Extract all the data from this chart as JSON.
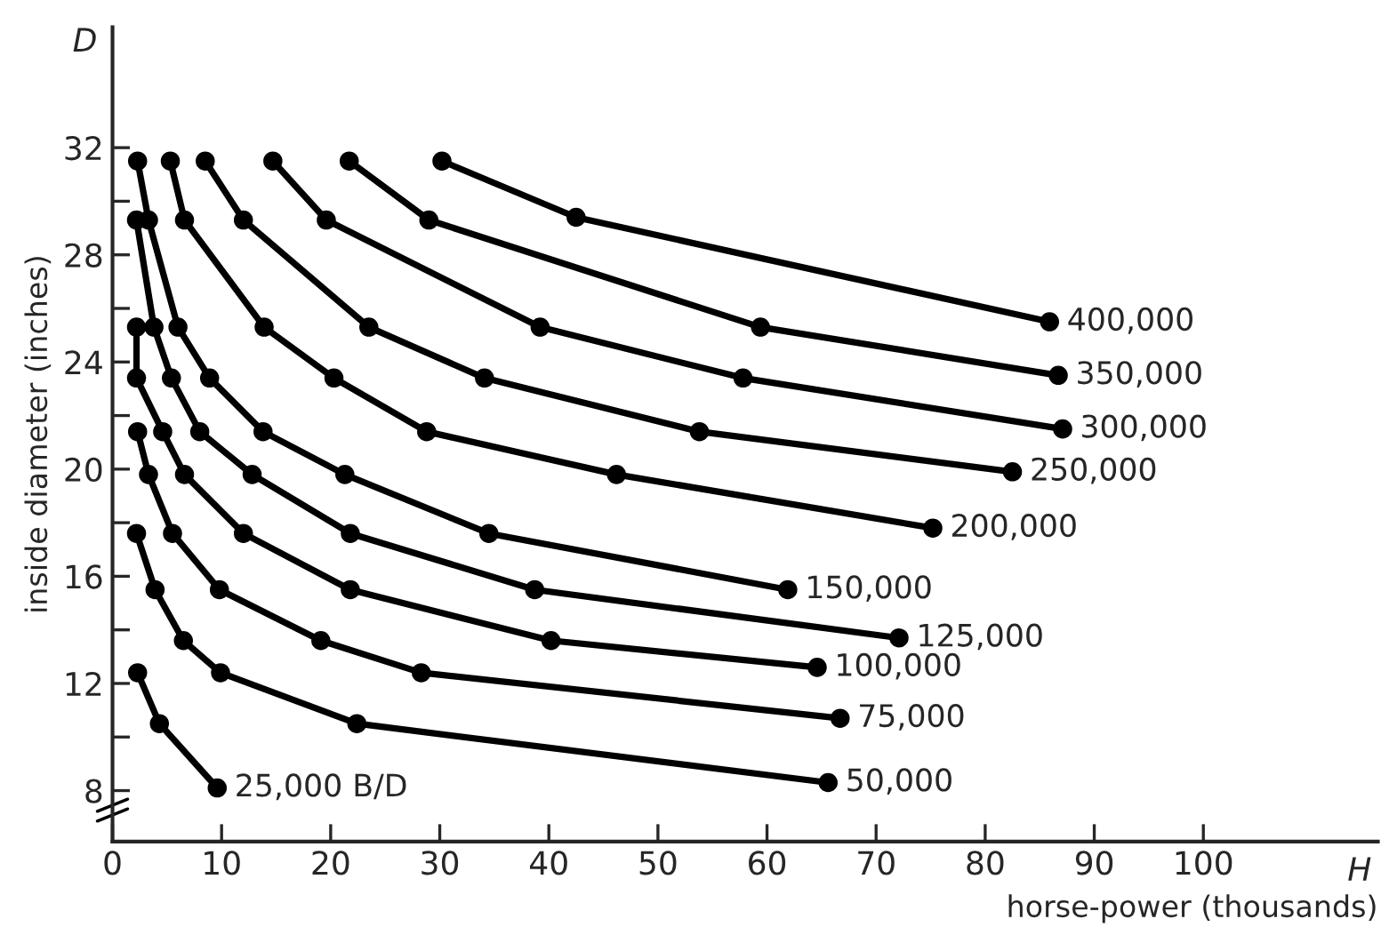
{
  "chart_data": {
    "type": "line",
    "xlabel": "horse-power (thousands)",
    "ylabel": "inside diameter (inches)",
    "annotations": [
      "D",
      "H"
    ],
    "xlim": [
      0,
      116
    ],
    "ylim": [
      6.1,
      36.5
    ],
    "xticks": [
      0,
      10,
      20,
      30,
      40,
      50,
      60,
      70,
      80,
      90,
      100
    ],
    "yticks": [
      8,
      {
        "value": 10,
        "label": null
      },
      12,
      {
        "value": 14,
        "label": null
      },
      16,
      {
        "value": 18,
        "label": null
      },
      20,
      {
        "value": 22,
        "label": null
      },
      24,
      {
        "value": 26,
        "label": null
      },
      28,
      {
        "value": 30,
        "label": null
      },
      32
    ],
    "grid": false,
    "legend": false,
    "marker": "circle",
    "line_style": "solid",
    "series": [
      {
        "name": "25,000 B/D",
        "color": "#000000",
        "x": [
          2.3,
          4.3,
          9.6
        ],
        "values": [
          12.4,
          10.5,
          8.1
        ]
      },
      {
        "name": "50,000",
        "color": "#000000",
        "x": [
          2.2,
          3.9,
          6.5,
          9.9,
          22.4,
          65.6
        ],
        "values": [
          17.6,
          15.5,
          13.6,
          12.4,
          10.5,
          8.3
        ]
      },
      {
        "name": "75,000",
        "color": "#000000",
        "x": [
          2.3,
          3.3,
          5.5,
          9.8,
          19.1,
          28.3,
          66.7
        ],
        "values": [
          21.4,
          19.8,
          17.6,
          15.5,
          13.6,
          12.4,
          10.7
        ]
      },
      {
        "name": "100,000",
        "color": "#000000",
        "x": [
          2.2,
          2.2,
          4.6,
          6.6,
          12.0,
          21.8,
          40.2,
          64.6
        ],
        "values": [
          25.3,
          23.4,
          21.4,
          19.8,
          17.6,
          15.5,
          13.6,
          12.6
        ]
      },
      {
        "name": "125,000",
        "color": "#000000",
        "x": [
          2.2,
          3.8,
          5.4,
          8.0,
          12.8,
          21.8,
          38.7,
          72.1
        ],
        "values": [
          29.3,
          25.3,
          23.4,
          21.4,
          19.8,
          17.6,
          15.5,
          13.7
        ]
      },
      {
        "name": "150,000",
        "color": "#000000",
        "x": [
          2.3,
          3.3,
          6.0,
          8.9,
          13.8,
          21.3,
          34.5,
          61.9
        ],
        "values": [
          31.5,
          29.3,
          25.3,
          23.4,
          21.4,
          19.8,
          17.6,
          15.5
        ]
      },
      {
        "name": "200,000",
        "color": "#000000",
        "x": [
          5.3,
          6.6,
          13.9,
          20.3,
          28.8,
          46.2,
          75.2
        ],
        "values": [
          31.5,
          29.3,
          25.3,
          23.4,
          21.4,
          19.8,
          17.8
        ]
      },
      {
        "name": "250,000",
        "color": "#000000",
        "x": [
          8.5,
          12.0,
          23.5,
          34.1,
          53.8,
          82.5
        ],
        "values": [
          31.5,
          29.3,
          25.3,
          23.4,
          21.4,
          19.9
        ]
      },
      {
        "name": "300,000",
        "color": "#000000",
        "x": [
          14.7,
          19.6,
          39.2,
          57.8,
          87.1
        ],
        "values": [
          31.5,
          29.3,
          25.3,
          23.4,
          21.5
        ]
      },
      {
        "name": "350,000",
        "color": "#000000",
        "x": [
          21.7,
          29.0,
          59.4,
          86.7
        ],
        "values": [
          31.5,
          29.3,
          25.3,
          23.5
        ]
      },
      {
        "name": "400,000",
        "color": "#000000",
        "x": [
          30.2,
          42.5,
          85.9
        ],
        "values": [
          31.5,
          29.4,
          25.5
        ]
      }
    ]
  }
}
